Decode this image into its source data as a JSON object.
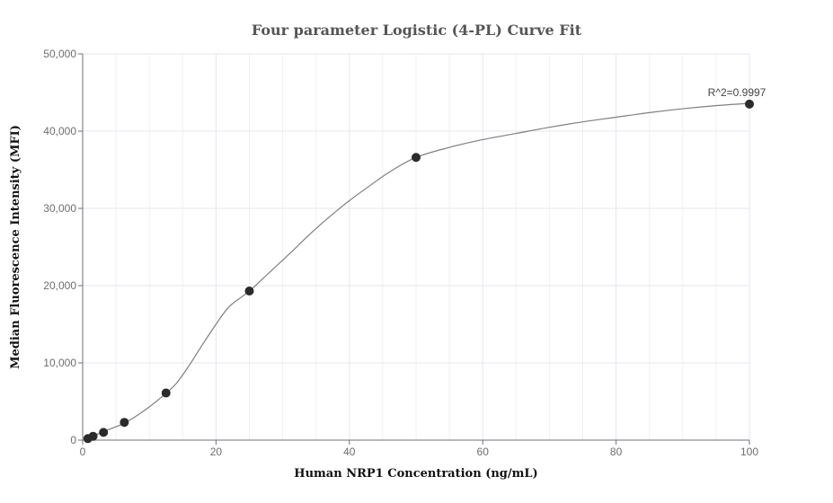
{
  "chart_data": {
    "type": "scatter",
    "title": "Four parameter Logistic (4-PL) Curve Fit",
    "xlabel": "Human NRP1 Concentration (ng/mL)",
    "ylabel": "Median Fluorescence Intensity (MFI)",
    "xlim": [
      0,
      100
    ],
    "ylim": [
      0,
      50000
    ],
    "x_ticks": [
      0,
      20,
      40,
      60,
      80,
      100
    ],
    "x_tick_labels": [
      "0",
      "20",
      "40",
      "60",
      "80",
      "100"
    ],
    "y_ticks": [
      0,
      10000,
      20000,
      30000,
      40000,
      50000
    ],
    "y_tick_labels": [
      "0",
      "10,000",
      "20,000",
      "30,000",
      "40,000",
      "50,000"
    ],
    "grid": true,
    "points": {
      "x": [
        0.78,
        1.56,
        3.125,
        6.25,
        12.5,
        25,
        50,
        100
      ],
      "y": [
        200,
        500,
        1000,
        2300,
        6100,
        19300,
        36600,
        43500
      ]
    },
    "fit_curve": {
      "x": [
        0.78,
        2,
        4,
        6,
        8,
        10,
        12,
        14,
        16,
        18,
        20,
        22,
        25,
        28,
        31,
        34,
        37,
        40,
        43,
        46,
        50,
        55,
        60,
        65,
        70,
        75,
        80,
        85,
        90,
        95,
        100
      ],
      "y": [
        300,
        700,
        1400,
        2100,
        3100,
        4300,
        5700,
        7300,
        9700,
        12400,
        15000,
        17300,
        19300,
        21700,
        24100,
        26600,
        28900,
        31000,
        32900,
        34700,
        36600,
        37900,
        38900,
        39700,
        40500,
        41200,
        41800,
        42400,
        42900,
        43300,
        43600
      ]
    },
    "annotation": "R^2=0.9997"
  }
}
